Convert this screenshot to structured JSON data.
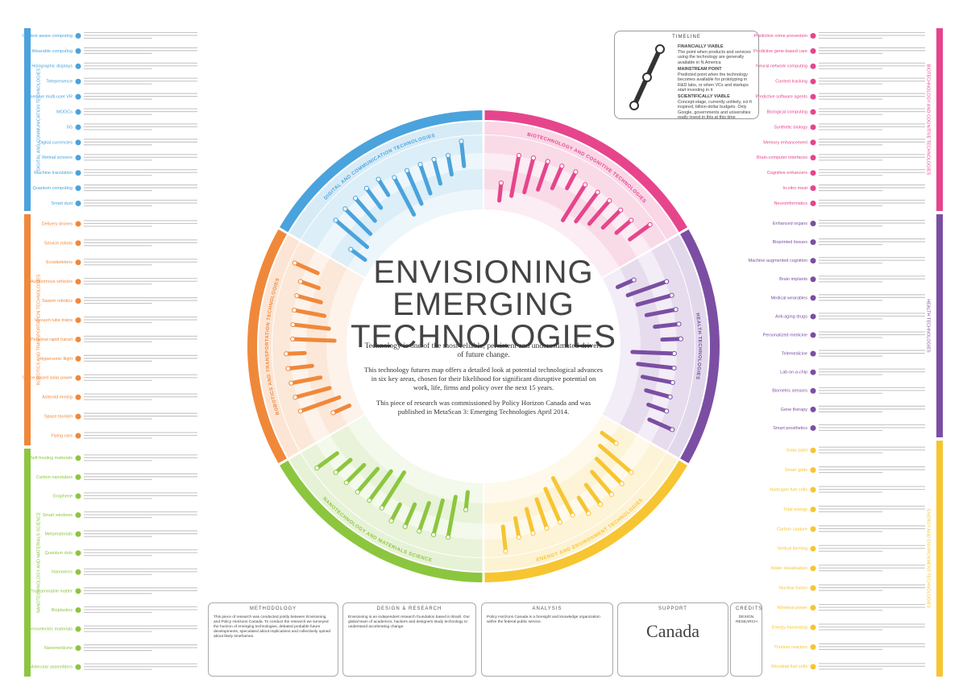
{
  "title_lines": [
    "ENVISIONING",
    "EMERGING",
    "TECHNOLOGIES"
  ],
  "intro": [
    "Technology is one of the most reliable, persistent and underestimated drivers of future change.",
    "This technology futures map offers a detailed look at potential technological advances in six key areas, chosen for their likelihood for significant disruptive potential on work, life, firms and policy over the next 15 years.",
    "This piece of research was commissioned by Policy Horizon Canada and was published in MetaScan 3: Emerging Technologies April 2014."
  ],
  "sectors": [
    {
      "name": "DIGITAL AND COMMUNICATION TECHNOLOGIES",
      "color": "#4aa3dc",
      "technologies": [
        "Context aware computing",
        "Wearable computing",
        "Holographic displays",
        "Telepresence",
        "Immersive multi-user VR",
        "MOOCs",
        "5G",
        "Digital currencies",
        "Retinal screens",
        "Machine translation",
        "Quantum computing",
        "Smart dust"
      ]
    },
    {
      "name": "BIOTECHNOLOGY AND COGNITIVE TECHNOLOGIES",
      "color": "#e6458c",
      "technologies": [
        "Predictive crime prevention",
        "Predictive gene-based care",
        "Neural network computing",
        "Context tracking",
        "Predictive software agents",
        "Biological computing",
        "Synthetic biology",
        "Memory enhancement",
        "Brain-computer interfaces",
        "Cognitive enhancers",
        "In-vitro meat",
        "Neuroinformatics"
      ]
    },
    {
      "name": "HEALTH TECHNOLOGIES",
      "color": "#7b4ea3",
      "technologies": [
        "Enhanced organs",
        "Bioprinted tissues",
        "Machine augmented cognition",
        "Brain implants",
        "Medical wearables",
        "Anti-aging drugs",
        "Personalized medicine",
        "Telemedicine",
        "Lab-on-a-chip",
        "Biometric sensors",
        "Gene therapy",
        "Smart prosthetics"
      ]
    },
    {
      "name": "ENERGY AND ENVIRONMENT TECHNOLOGIES",
      "color": "#f7c531",
      "technologies": [
        "Solar paint",
        "Smart grids",
        "Hydrogen fuel cells",
        "Tidal energy",
        "Carbon capture",
        "Vertical farming",
        "Water desalination",
        "Nuclear fusion",
        "Wireless power",
        "Energy harvesting",
        "Thorium reactors",
        "Microbial fuel cells"
      ]
    },
    {
      "name": "NANOTECHNOLOGY AND MATERIALS SCIENCE",
      "color": "#8cc63f",
      "technologies": [
        "Self-healing materials",
        "Carbon nanotubes",
        "Graphene",
        "Smart windows",
        "Metamaterials",
        "Quantum dots",
        "Nanowires",
        "Programmable matter",
        "Bioplastics",
        "Thermoelectric materials",
        "Nanomedicine",
        "Molecular assemblers"
      ]
    },
    {
      "name": "ROBOTICS AND TRANSPORTATION TECHNOLOGIES",
      "color": "#f0883a",
      "technologies": [
        "Delivery drones",
        "Service robots",
        "Exoskeletons",
        "Autonomous vehicles",
        "Swarm robotics",
        "Vacuum tube trains",
        "Personal rapid transit",
        "Hypersonic flight",
        "Space-based solar power",
        "Asteroid mining",
        "Space tourism",
        "Flying cars"
      ]
    }
  ],
  "timeline": {
    "title": "TIMELINE",
    "stages": [
      {
        "name": "FINANCIALLY VIABLE",
        "text": "The point when products and services using the technology are generally available in N.America"
      },
      {
        "name": "MAINSTREAM POINT",
        "text": "Predicted point when the technology becomes available for prototyping in R&D labs, or when VCs and startups start investing in it"
      },
      {
        "name": "SCIENTIFICALLY VIABLE",
        "text": "Concept-stage, currently unlikely, sci-fi inspired, billion-dollar budgets. Only Google, governments and universities really invest in this at this time"
      }
    ]
  },
  "footer": [
    {
      "heading": "METHODOLOGY",
      "text": "This piece of research was conducted jointly between Envisioning and Policy Horizons Canada. To conduct the research we surveyed the horizon of emerging technologies, debated probable future developments, speculated about implications and collectively opined about likely timeframes."
    },
    {
      "heading": "DESIGN & RESEARCH",
      "text": "Envisioning is an independent research foundation based in Brazil. Our global team of academics, hackers and designers study technology to understand accelerating change."
    },
    {
      "heading": "ANALYSIS",
      "text": "Policy Horizons Canada is a foresight and knowledge organization within the federal public service."
    },
    {
      "heading": "SUPPORT",
      "text": "Canada"
    },
    {
      "heading": "CREDITS",
      "text": "DESIGN RESEARCH"
    }
  ]
}
